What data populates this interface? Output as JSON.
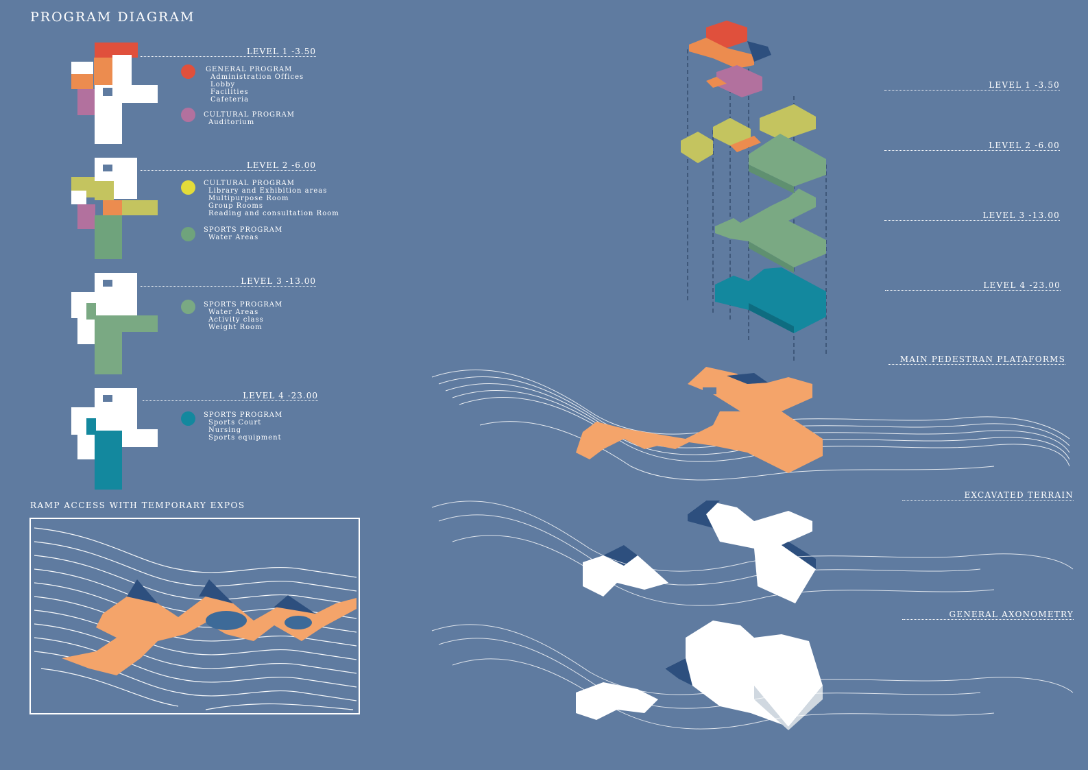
{
  "title": "PROGRAM DIAGRAM",
  "levels": [
    {
      "heading": "LEVEL 1  -3.50",
      "groups": [
        {
          "color": "#e0503c",
          "category": "GENERAL PROGRAM",
          "items": [
            "Administration Offices",
            "Lobby",
            "Facilities",
            "Cafeteria"
          ]
        },
        {
          "color": "#b2719e",
          "category": "CULTURAL PROGRAM",
          "items": [
            "Auditorium"
          ]
        }
      ]
    },
    {
      "heading": "LEVEL 2  -6.00",
      "groups": [
        {
          "color": "#e3dc3a",
          "category": "CULTURAL PROGRAM",
          "items": [
            "Library and Exhibition areas",
            "Multipurpose Room",
            "Group Rooms",
            "Reading and consultation Room"
          ]
        },
        {
          "color": "#6fa37c",
          "category": "SPORTS PROGRAM",
          "items": [
            "Water Areas"
          ]
        }
      ]
    },
    {
      "heading": "LEVEL 3  -13.00",
      "groups": [
        {
          "color": "#7aa983",
          "category": "SPORTS PROGRAM",
          "items": [
            "Water Areas",
            "Activity class",
            "Weight Room"
          ]
        }
      ]
    },
    {
      "heading": "LEVEL 4  -23.00",
      "groups": [
        {
          "color": "#13889e",
          "category": "SPORTS PROGRAM",
          "items": [
            "Sports Court",
            "Nursing",
            "Sports equipment"
          ]
        }
      ]
    }
  ],
  "ramp_title": "RAMP ACCESS WITH TEMPORARY EXPOS",
  "right_labels": [
    "LEVEL 1  -3.50",
    "LEVEL 2  -6.00",
    "LEVEL 3  -13.00",
    "LEVEL 4  -23.00",
    "MAIN PEDESTRAN PLATAFORMS",
    "EXCAVATED TERRAIN",
    "GENERAL AXONOMETRY"
  ],
  "colors": {
    "background": "#5f7ba0",
    "general": "#e0503c",
    "orange": "#ec8c4f",
    "cultural_purple": "#b2719e",
    "cultural_yellow": "#c4c45f",
    "sports_green": "#7aa983",
    "sports_teal": "#13889e",
    "platform": "#f4a46a",
    "dark_blue": "#2d4f7e"
  }
}
